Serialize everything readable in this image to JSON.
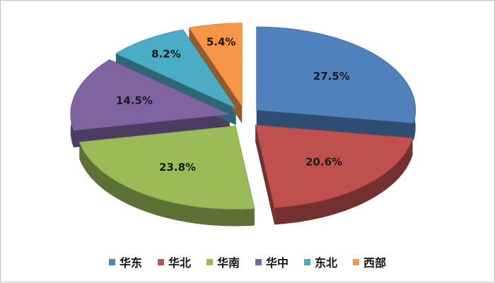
{
  "chart_data": {
    "type": "pie",
    "style": "3d-exploded",
    "categories": [
      "华东",
      "华北",
      "华南",
      "华中",
      "东北",
      "西部"
    ],
    "values": [
      27.5,
      20.6,
      23.8,
      14.5,
      8.2,
      5.4
    ],
    "labels": [
      "27.5%",
      "20.6%",
      "23.8%",
      "14.5%",
      "8.2%",
      "5.4%"
    ],
    "colors": [
      "#4f81bd",
      "#c0504d",
      "#9bbb59",
      "#8064a2",
      "#4bacc6",
      "#f79646"
    ],
    "legend_position": "bottom"
  }
}
